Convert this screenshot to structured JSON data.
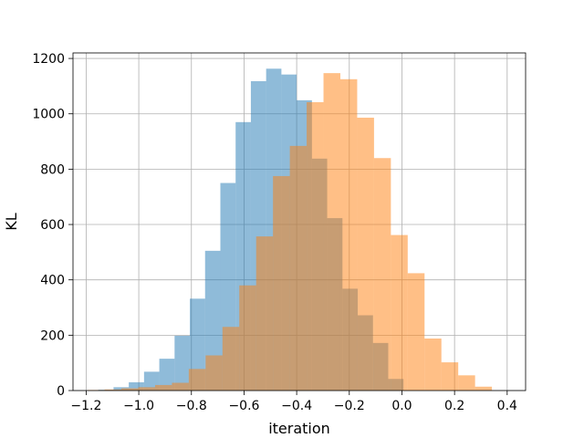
{
  "chart_data": {
    "type": "bar",
    "title": "",
    "xlabel": "iteration",
    "ylabel": "KL",
    "xlim": [
      -1.25,
      0.47
    ],
    "ylim": [
      0,
      1220
    ],
    "xticks": [
      -1.2,
      -1.0,
      -0.8,
      -0.6,
      -0.4,
      -0.2,
      0.0,
      0.2,
      0.4
    ],
    "xtick_labels": [
      "−1.2",
      "−1.0",
      "−0.8",
      "−0.6",
      "−0.4",
      "−0.2",
      "0.0",
      "0.2",
      "0.4"
    ],
    "yticks": [
      0,
      200,
      400,
      600,
      800,
      1000,
      1200
    ],
    "ytick_labels": [
      "0",
      "200",
      "400",
      "600",
      "800",
      "1000",
      "1200"
    ],
    "grid": true,
    "series": [
      {
        "color": "#1f77b4",
        "bin_edges": [
          -1.154,
          -1.096,
          -1.038,
          -0.98,
          -0.922,
          -0.864,
          -0.806,
          -0.748,
          -0.69,
          -0.632,
          -0.574,
          -0.516,
          -0.458,
          -0.4,
          -0.342,
          -0.284,
          -0.226,
          -0.168,
          -0.11,
          -0.052,
          0.006
        ],
        "counts": [
          3,
          12,
          30,
          68,
          115,
          198,
          332,
          505,
          750,
          970,
          1118,
          1163,
          1142,
          1049,
          838,
          623,
          368,
          272,
          172,
          42
        ]
      },
      {
        "color": "#ff7f0e",
        "bin_edges": [
          -1.194,
          -1.13,
          -1.066,
          -1.002,
          -0.938,
          -0.874,
          -0.81,
          -0.746,
          -0.682,
          -0.618,
          -0.554,
          -0.49,
          -0.426,
          -0.362,
          -0.298,
          -0.234,
          -0.17,
          -0.106,
          -0.042,
          0.022,
          0.086,
          0.15,
          0.214,
          0.278,
          0.342
        ],
        "counts": [
          2,
          4,
          8,
          12,
          20,
          28,
          78,
          127,
          230,
          380,
          557,
          775,
          884,
          1042,
          1147,
          1125,
          986,
          840,
          562,
          424,
          188,
          102,
          55,
          14
        ]
      }
    ]
  }
}
